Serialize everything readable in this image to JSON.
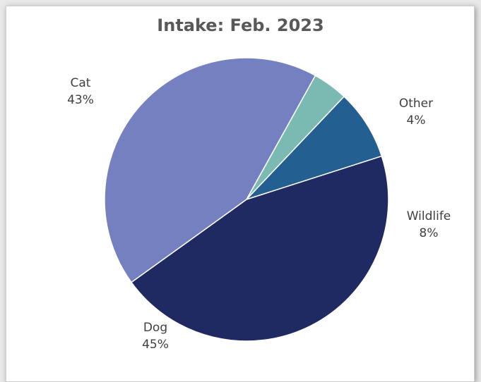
{
  "chart_data": {
    "type": "pie",
    "title": "Intake: Feb. 2023",
    "slices": [
      {
        "label": "Cat",
        "value": 43,
        "pct_label": "43%",
        "color": "#7480bf"
      },
      {
        "label": "Other",
        "value": 4,
        "pct_label": "4%",
        "color": "#7bbab3"
      },
      {
        "label": "Wildlife",
        "value": 8,
        "pct_label": "8%",
        "color": "#245f92"
      },
      {
        "label": "Dog",
        "value": 45,
        "pct_label": "45%",
        "color": "#202a62"
      }
    ]
  }
}
